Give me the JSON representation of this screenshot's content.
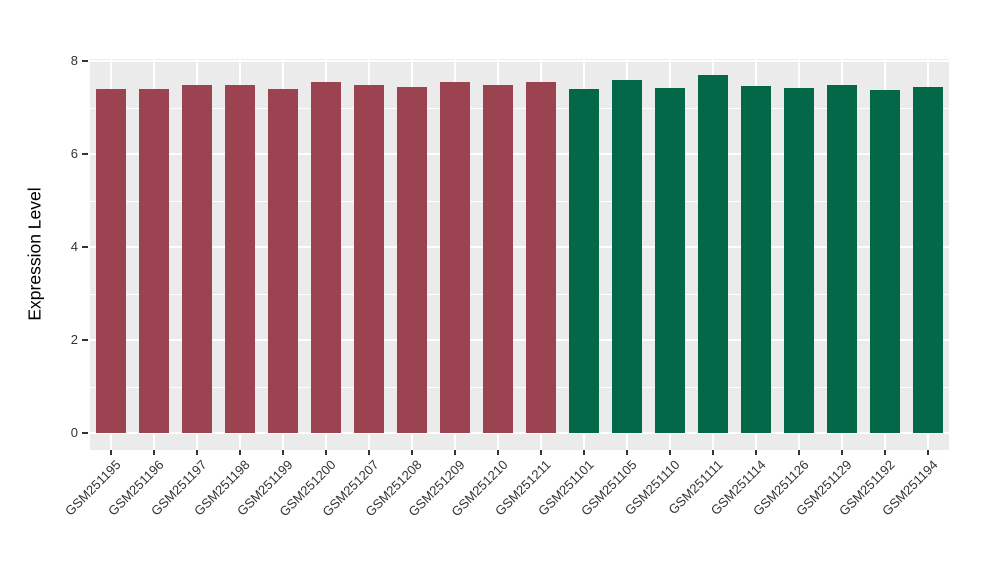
{
  "chart_data": {
    "type": "bar",
    "title": "",
    "xlabel": "",
    "ylabel": "Expression Level",
    "ylim": [
      0,
      8
    ],
    "yticks": [
      0,
      2,
      4,
      6,
      8
    ],
    "yticks_minor": [
      1,
      3,
      5,
      7
    ],
    "grid": "on",
    "legend": "none",
    "panel_background": "#EBEBEB",
    "grid_color": "#FFFFFF",
    "series": [
      {
        "color": "#9C4351",
        "categories": [
          "GSM251195",
          "GSM251196",
          "GSM251197",
          "GSM251198",
          "GSM251199",
          "GSM251200",
          "GSM251207",
          "GSM251208",
          "GSM251209",
          "GSM251210",
          "GSM251211"
        ],
        "values": [
          7.4,
          7.4,
          7.5,
          7.5,
          7.4,
          7.56,
          7.49,
          7.46,
          7.56,
          7.49,
          7.56
        ]
      },
      {
        "color": "#026847",
        "categories": [
          "GSM251101",
          "GSM251105",
          "GSM251110",
          "GSM251111",
          "GSM251114",
          "GSM251126",
          "GSM251129",
          "GSM251192",
          "GSM251194"
        ],
        "values": [
          7.4,
          7.61,
          7.43,
          7.7,
          7.47,
          7.43,
          7.5,
          7.38,
          7.45
        ]
      }
    ]
  }
}
